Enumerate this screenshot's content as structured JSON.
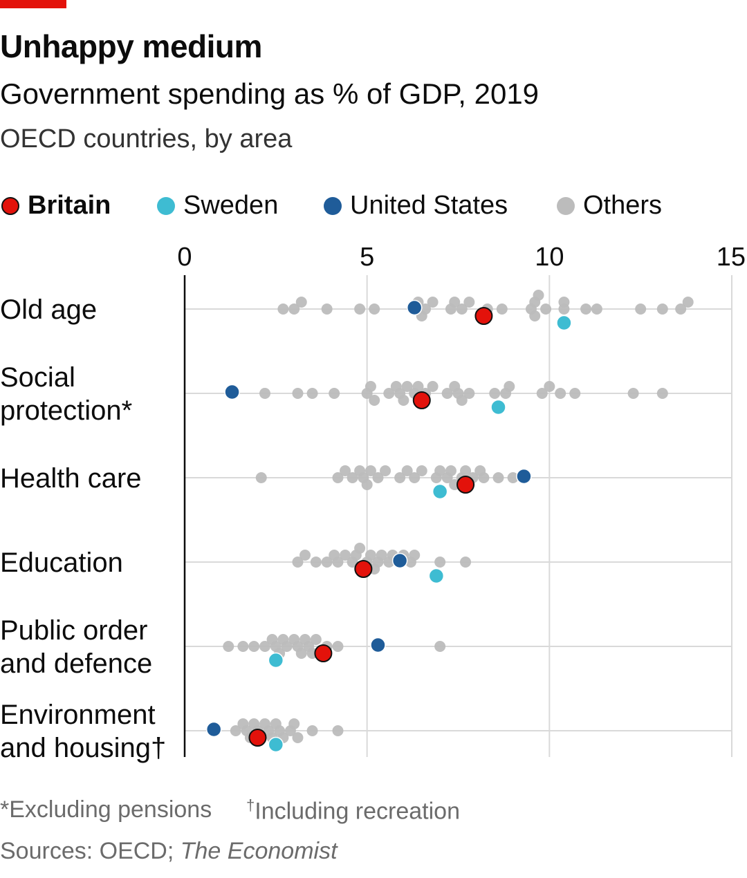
{
  "header": {
    "title": "Unhappy medium",
    "subtitle": "Government spending as % of GDP, 2019",
    "subsubtitle": "OECD countries, by area"
  },
  "legend": {
    "britain": "Britain",
    "sweden": "Sweden",
    "us": "United States",
    "others": "Others"
  },
  "colors": {
    "britain": "#e3120b",
    "sweden": "#3ebcd2",
    "us": "#1f5c99",
    "others": "#bcbcbc",
    "accent": "#e3120b"
  },
  "footnotes": {
    "star": "*Excluding pensions",
    "dagger_mark": "†",
    "dagger": "Including recreation",
    "sources_prefix": "Sources: OECD; ",
    "sources_italic": "The Economist"
  },
  "chart_data": {
    "type": "scatter",
    "title": "Government spending as % of GDP, 2019",
    "xlim": [
      0,
      15
    ],
    "xticks": [
      "0",
      "5",
      "10",
      "15"
    ],
    "grid": true,
    "legend_position": "top",
    "categories": [
      {
        "label_lines": [
          "Old age"
        ],
        "britain": 8.2,
        "sweden": 10.4,
        "us": 6.3,
        "others": [
          2.7,
          3.0,
          3.2,
          3.9,
          4.8,
          5.2,
          6.3,
          6.4,
          6.5,
          6.6,
          6.8,
          7.3,
          7.4,
          7.6,
          7.8,
          8.3,
          8.7,
          9.5,
          9.6,
          9.6,
          9.7,
          9.9,
          10.4,
          10.4,
          11.0,
          11.3,
          12.5,
          13.1,
          13.6,
          13.8
        ]
      },
      {
        "label_lines": [
          "Social",
          "protection*"
        ],
        "britain": 6.5,
        "sweden": 8.6,
        "us": 1.3,
        "others": [
          2.2,
          3.1,
          3.5,
          4.1,
          5.0,
          5.1,
          5.2,
          5.6,
          5.8,
          5.9,
          6.0,
          6.1,
          6.3,
          6.4,
          6.6,
          6.8,
          7.2,
          7.4,
          7.5,
          7.6,
          7.8,
          8.5,
          8.8,
          8.9,
          9.8,
          10.0,
          10.3,
          10.7,
          12.3,
          13.1
        ]
      },
      {
        "label_lines": [
          "Health care"
        ],
        "britain": 7.7,
        "sweden": 7.0,
        "us": 9.3,
        "others": [
          2.1,
          4.2,
          4.4,
          4.6,
          4.8,
          4.9,
          5.0,
          5.1,
          5.3,
          5.5,
          5.9,
          6.1,
          6.3,
          6.5,
          6.9,
          7.0,
          7.2,
          7.3,
          7.4,
          7.6,
          7.7,
          7.8,
          7.9,
          8.1,
          8.2,
          8.6,
          9.0,
          9.3
        ]
      },
      {
        "label_lines": [
          "Education"
        ],
        "britain": 4.9,
        "sweden": 6.9,
        "us": 5.9,
        "others": [
          3.1,
          3.3,
          3.6,
          3.9,
          4.1,
          4.2,
          4.4,
          4.6,
          4.7,
          4.8,
          4.8,
          5.0,
          5.1,
          5.2,
          5.3,
          5.4,
          5.6,
          5.7,
          5.9,
          6.0,
          6.2,
          6.3,
          7.0,
          7.7
        ]
      },
      {
        "label_lines": [
          "Public order",
          "and defence"
        ],
        "britain": 3.8,
        "sweden": 2.5,
        "us": 5.3,
        "others": [
          1.2,
          1.6,
          1.9,
          2.2,
          2.4,
          2.5,
          2.6,
          2.7,
          2.8,
          3.0,
          3.1,
          3.2,
          3.3,
          3.4,
          3.5,
          3.6,
          3.9,
          4.2,
          7.0
        ]
      },
      {
        "label_lines": [
          "Environment",
          "and housing†"
        ],
        "britain": 2.0,
        "sweden": 2.5,
        "us": 0.8,
        "others": [
          1.4,
          1.6,
          1.7,
          1.8,
          1.9,
          2.0,
          2.1,
          2.2,
          2.3,
          2.4,
          2.5,
          2.6,
          2.7,
          2.9,
          3.0,
          3.1,
          3.5,
          4.2
        ]
      }
    ]
  }
}
